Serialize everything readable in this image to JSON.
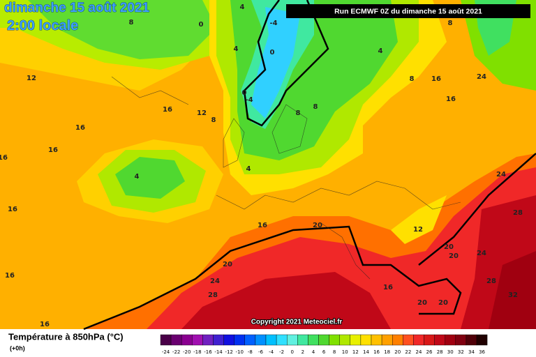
{
  "header": {
    "date": "dimanche 15 août 2021",
    "time": "2:00 locale",
    "run": "Run ECMWF 0Z du dimanche 15 août 2021",
    "copyright": "Copyright 2021 Meteociel.fr"
  },
  "map": {
    "contour_labels": [
      "12",
      "16",
      "12",
      "8",
      "16",
      "16",
      "16",
      "4",
      "16",
      "20",
      "12",
      "20",
      "24",
      "28",
      "16",
      "16",
      "16",
      "20",
      "20",
      "20",
      "20",
      "24",
      "28",
      "24",
      "28",
      "32",
      "16",
      "16",
      "24",
      "8",
      "8",
      "4",
      "-4",
      "0",
      "-4",
      "0",
      "8",
      "8",
      "4",
      "0",
      "4",
      "8",
      "4",
      "16"
    ]
  },
  "legend": {
    "title": "Température à 850hPa (°C)",
    "lead": "(+0h)",
    "stops": [
      {
        "value": -24,
        "color": "#4a0048"
      },
      {
        "value": -22,
        "color": "#6a0070"
      },
      {
        "value": -20,
        "color": "#8a0090"
      },
      {
        "value": -18,
        "color": "#a010b0"
      },
      {
        "value": -16,
        "color": "#7020c0"
      },
      {
        "value": -14,
        "color": "#4020d0"
      },
      {
        "value": -12,
        "color": "#1010e0"
      },
      {
        "value": -10,
        "color": "#0030f0"
      },
      {
        "value": -8,
        "color": "#0060ff"
      },
      {
        "value": -6,
        "color": "#0090ff"
      },
      {
        "value": -4,
        "color": "#00c0ff"
      },
      {
        "value": -2,
        "color": "#30e0ff"
      },
      {
        "value": 0,
        "color": "#60f0e0"
      },
      {
        "value": 2,
        "color": "#40e8a0"
      },
      {
        "value": 4,
        "color": "#40e060"
      },
      {
        "value": 6,
        "color": "#50d830"
      },
      {
        "value": 8,
        "color": "#80e000"
      },
      {
        "value": 10,
        "color": "#b0e800"
      },
      {
        "value": 12,
        "color": "#e8f000"
      },
      {
        "value": 14,
        "color": "#ffe000"
      },
      {
        "value": 16,
        "color": "#ffc000"
      },
      {
        "value": 18,
        "color": "#ffa000"
      },
      {
        "value": 20,
        "color": "#ff8000"
      },
      {
        "value": 22,
        "color": "#ff5020"
      },
      {
        "value": 24,
        "color": "#f02828"
      },
      {
        "value": 26,
        "color": "#d81818"
      },
      {
        "value": 28,
        "color": "#c00818"
      },
      {
        "value": 30,
        "color": "#a00010"
      },
      {
        "value": 32,
        "color": "#800010"
      },
      {
        "value": 34,
        "color": "#500008"
      },
      {
        "value": 36,
        "color": "#200000"
      }
    ]
  }
}
